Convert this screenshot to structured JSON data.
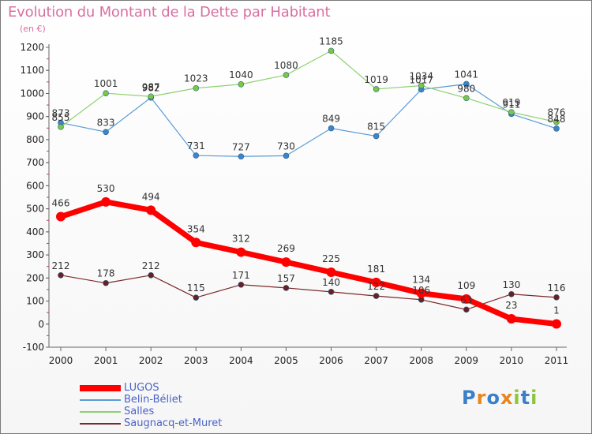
{
  "title": "Evolution du Montant de la Dette par Habitant",
  "unit_label": "(en €)",
  "brand": {
    "name": "Proxiti",
    "letter_colors": [
      "#3a7fc8",
      "#e8861c",
      "#3a7fc8",
      "#e8861c",
      "#8bc63f",
      "#3a7fc8",
      "#8bc63f"
    ]
  },
  "chart_data": {
    "type": "line",
    "x": [
      2000,
      2001,
      2002,
      2003,
      2004,
      2005,
      2006,
      2007,
      2008,
      2009,
      2010,
      2011
    ],
    "ylim": [
      -100,
      1200
    ],
    "yticks": [
      -100,
      0,
      100,
      200,
      300,
      400,
      500,
      600,
      700,
      800,
      900,
      1000,
      1100,
      1200
    ],
    "grid": false,
    "legend_position": "bottom-left",
    "series": [
      {
        "name": "Belin-Béliet",
        "color": "#5b9bd5",
        "marker_color": "#3f84c8",
        "line_width": 1.2,
        "marker_radius": 3.5,
        "label_offset": -8,
        "values": [
          873,
          833,
          982,
          731,
          727,
          730,
          849,
          815,
          1017,
          1041,
          911,
          848
        ]
      },
      {
        "name": "Salles",
        "color": "#8fd170",
        "marker_color": "#7ac943",
        "line_width": 1.2,
        "marker_radius": 3.5,
        "label_offset": -8,
        "values": [
          855,
          1001,
          987,
          1023,
          1040,
          1080,
          1185,
          1019,
          1034,
          980,
          919,
          876
        ]
      },
      {
        "name": "Saugnacq-et-Muret",
        "color": "#7a2a2a",
        "marker_color": "#6b1f1f",
        "line_width": 1.2,
        "marker_radius": 3.5,
        "label_offset": -8,
        "values": [
          212,
          178,
          212,
          115,
          171,
          157,
          140,
          122,
          106,
          63,
          130,
          116
        ]
      },
      {
        "name": "LUGOS",
        "color": "#ff0000",
        "marker_color": "#ff0000",
        "line_width": 7,
        "marker_radius": 6,
        "label_offset": -13,
        "values": [
          466,
          530,
          494,
          354,
          312,
          269,
          225,
          181,
          134,
          109,
          23,
          1
        ]
      }
    ]
  }
}
